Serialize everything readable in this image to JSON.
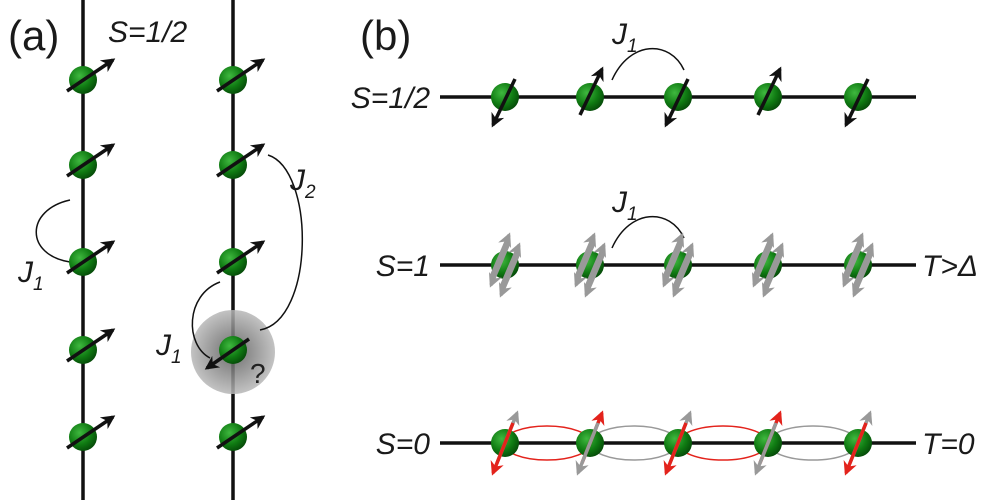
{
  "panel_a": {
    "label": "(a)",
    "spin": "S=1/2",
    "j1_left": {
      "main": "J",
      "sub": "1"
    },
    "j1_right": {
      "main": "J",
      "sub": "1"
    },
    "j2": {
      "main": "J",
      "sub": "2"
    },
    "unknown": "?"
  },
  "panel_b": {
    "label": "(b)",
    "rows": [
      {
        "spin": "S=1/2",
        "coupling": {
          "main": "J",
          "sub": "1"
        }
      },
      {
        "spin": "S=1",
        "coupling": {
          "main": "J",
          "sub": "1"
        },
        "temperature": "T>Δ"
      },
      {
        "spin": "S=0",
        "temperature": "T=0"
      }
    ]
  }
}
